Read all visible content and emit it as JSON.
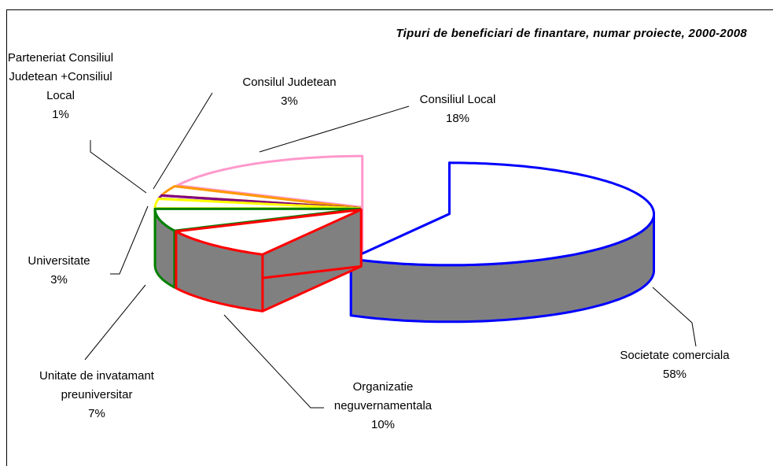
{
  "chart_data": {
    "type": "pie3d",
    "title": "Tipuri de beneficiari de finantare, numar proiecte, 2000-2008",
    "categories": [
      "Societate comerciala",
      "Organizatie neguvernamentala",
      "Unitate de invatamant preuniversitar",
      "Universitate",
      "Parteneriat Consiliul Judetean +Consiliul Local",
      "Consilul Judetean",
      "Consiliul Local"
    ],
    "values": [
      58,
      10,
      7,
      3,
      1,
      3,
      18
    ],
    "value_labels": [
      "58%",
      "10%",
      "7%",
      "3%",
      "1%",
      "3%",
      "18%"
    ],
    "colors": [
      "#0000ff",
      "#ff0000",
      "#008000",
      "#ffff00",
      "#800080",
      "#ff9900",
      "#ff99cc"
    ]
  }
}
